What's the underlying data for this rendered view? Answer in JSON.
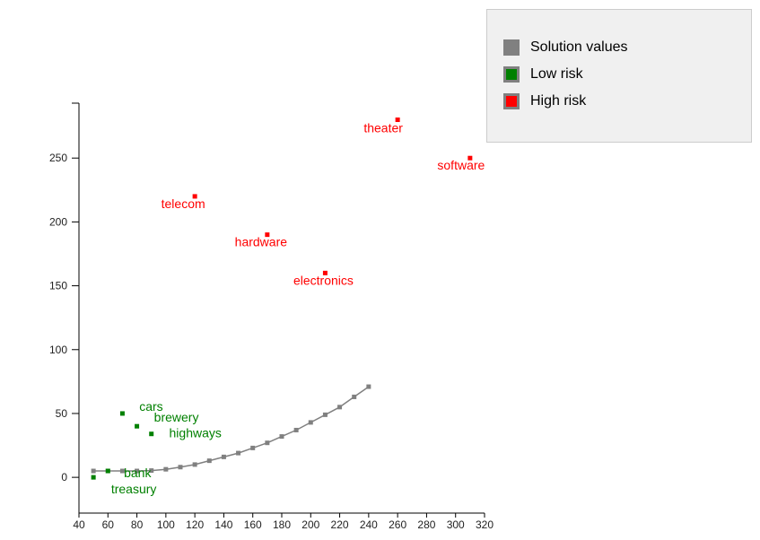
{
  "chart_data": {
    "type": "scatter",
    "title": "",
    "xlabel": "",
    "ylabel": "",
    "xlim": [
      40,
      320
    ],
    "ylim": [
      -28,
      293
    ],
    "x_ticks": [
      40,
      60,
      80,
      100,
      120,
      140,
      160,
      180,
      200,
      220,
      240,
      260,
      280,
      300,
      320
    ],
    "y_ticks": [
      0,
      50,
      100,
      150,
      200,
      250
    ],
    "grid": false,
    "legend_position": "top-right",
    "series": [
      {
        "name": "Solution values",
        "color": "#808080",
        "mode": "line+markers",
        "points": [
          {
            "x": 50,
            "y": 5
          },
          {
            "x": 60,
            "y": 5
          },
          {
            "x": 70,
            "y": 5
          },
          {
            "x": 80,
            "y": 5
          },
          {
            "x": 90,
            "y": 5.3
          },
          {
            "x": 100,
            "y": 6.3
          },
          {
            "x": 110,
            "y": 8
          },
          {
            "x": 120,
            "y": 10
          },
          {
            "x": 130,
            "y": 13
          },
          {
            "x": 140,
            "y": 16
          },
          {
            "x": 150,
            "y": 19
          },
          {
            "x": 160,
            "y": 23
          },
          {
            "x": 170,
            "y": 27
          },
          {
            "x": 180,
            "y": 32
          },
          {
            "x": 190,
            "y": 37
          },
          {
            "x": 200,
            "y": 43
          },
          {
            "x": 210,
            "y": 49
          },
          {
            "x": 220,
            "y": 55
          },
          {
            "x": 230,
            "y": 63
          },
          {
            "x": 240,
            "y": 71
          }
        ]
      },
      {
        "name": "Low risk",
        "color": "#008000",
        "mode": "markers",
        "points": [
          {
            "x": 50,
            "y": 0,
            "label": "treasury"
          },
          {
            "x": 60,
            "y": 5,
            "label": "bank"
          },
          {
            "x": 70,
            "y": 50,
            "label": "cars"
          },
          {
            "x": 80,
            "y": 40,
            "label": "brewery"
          },
          {
            "x": 90,
            "y": 34,
            "label": "highways"
          }
        ]
      },
      {
        "name": "High risk",
        "color": "#ff0000",
        "mode": "markers",
        "points": [
          {
            "x": 120,
            "y": 220,
            "label": "telecom"
          },
          {
            "x": 170,
            "y": 190,
            "label": "hardware"
          },
          {
            "x": 210,
            "y": 160,
            "label": "electronics"
          },
          {
            "x": 260,
            "y": 280,
            "label": "theater"
          },
          {
            "x": 310,
            "y": 250,
            "label": "software"
          }
        ]
      }
    ]
  }
}
